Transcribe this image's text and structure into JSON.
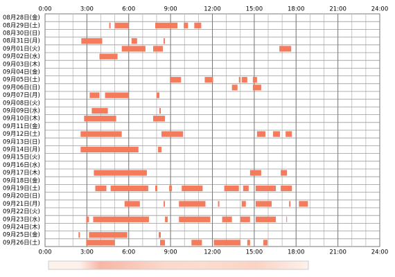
{
  "chart_data": {
    "type": "timeline",
    "xlim": [
      0,
      24
    ],
    "xticks": [
      {
        "value": 0,
        "label": "0:00"
      },
      {
        "value": 3,
        "label": "3:00"
      },
      {
        "value": 6,
        "label": "6:00"
      },
      {
        "value": 9,
        "label": "9:00"
      },
      {
        "value": 12,
        "label": "12:00"
      },
      {
        "value": 15,
        "label": "15:00"
      },
      {
        "value": 18,
        "label": "18:00"
      },
      {
        "value": 21,
        "label": "21:00"
      },
      {
        "value": 24,
        "label": "24:00"
      }
    ],
    "color": "#f47c5c",
    "grid": true,
    "rows": [
      {
        "label": "08月28日(金)",
        "segments": []
      },
      {
        "label": "08月29日(土)",
        "segments": [
          [
            4.6,
            4.7
          ],
          [
            5.0,
            6.0
          ],
          [
            7.9,
            9.5
          ],
          [
            9.95,
            10.25
          ],
          [
            10.7,
            11.2
          ]
        ]
      },
      {
        "label": "08月30日(日)",
        "segments": []
      },
      {
        "label": "08月31日(月)",
        "segments": [
          [
            2.6,
            4.1
          ],
          [
            6.2,
            6.6
          ],
          [
            8.5,
            8.6
          ]
        ]
      },
      {
        "label": "09月01日(火)",
        "segments": [
          [
            5.5,
            7.2
          ],
          [
            7.75,
            8.45
          ],
          [
            16.8,
            17.65
          ]
        ]
      },
      {
        "label": "09月02日(水)",
        "segments": [
          [
            3.9,
            5.2
          ]
        ]
      },
      {
        "label": "09月03日(木)",
        "segments": []
      },
      {
        "label": "09月04日(金)",
        "segments": []
      },
      {
        "label": "09月05日(土)",
        "segments": [
          [
            8.95,
            9.75
          ],
          [
            11.45,
            12.05
          ],
          [
            13.9,
            14.0
          ],
          [
            14.1,
            14.5
          ],
          [
            14.9,
            15.2
          ]
        ]
      },
      {
        "label": "09月06日(日)",
        "segments": [
          [
            13.4,
            13.8
          ],
          [
            14.9,
            15.5
          ]
        ]
      },
      {
        "label": "09月07日(月)",
        "segments": [
          [
            3.2,
            3.9
          ],
          [
            4.3,
            6.0
          ],
          [
            8.0,
            8.2
          ]
        ]
      },
      {
        "label": "09月08日(火)",
        "segments": []
      },
      {
        "label": "09月09日(水)",
        "segments": [
          [
            3.35,
            4.5
          ],
          [
            8.2,
            8.3
          ]
        ]
      },
      {
        "label": "09月10日(木)",
        "segments": [
          [
            2.8,
            5.1
          ],
          [
            7.75,
            8.6
          ]
        ]
      },
      {
        "label": "09月11日(金)",
        "segments": []
      },
      {
        "label": "09月12日(土)",
        "segments": [
          [
            2.55,
            5.5
          ],
          [
            8.35,
            9.9
          ],
          [
            15.2,
            15.8
          ],
          [
            16.35,
            16.85
          ],
          [
            17.25,
            17.7
          ]
        ]
      },
      {
        "label": "09月13日(日)",
        "segments": []
      },
      {
        "label": "09月14日(月)",
        "segments": [
          [
            2.55,
            6.7
          ],
          [
            8.1,
            8.35
          ]
        ]
      },
      {
        "label": "09月15日(火)",
        "segments": []
      },
      {
        "label": "09月16日(水)",
        "segments": []
      },
      {
        "label": "09月17日(木)",
        "segments": [
          [
            3.5,
            7.3
          ],
          [
            14.7,
            15.5
          ],
          [
            16.9,
            17.35
          ]
        ]
      },
      {
        "label": "09月18日(金)",
        "segments": []
      },
      {
        "label": "09月19日(土)",
        "segments": [
          [
            3.6,
            4.4
          ],
          [
            4.7,
            7.4
          ],
          [
            7.9,
            8.05
          ],
          [
            8.9,
            9.1
          ],
          [
            9.8,
            11.3
          ],
          [
            12.85,
            13.9
          ],
          [
            14.2,
            14.6
          ],
          [
            15.1,
            16.55
          ],
          [
            16.9,
            17.7
          ]
        ]
      },
      {
        "label": "09月20日(日)",
        "segments": []
      },
      {
        "label": "09月21日(月)",
        "segments": [
          [
            5.7,
            6.8
          ],
          [
            8.5,
            8.6
          ],
          [
            9.6,
            11.5
          ],
          [
            12.4,
            12.5
          ],
          [
            14.1,
            14.4
          ],
          [
            15.1,
            16.25
          ],
          [
            17.5,
            17.6
          ],
          [
            18.2,
            18.85
          ]
        ]
      },
      {
        "label": "09月22日(火)",
        "segments": []
      },
      {
        "label": "09月23日(水)",
        "segments": [
          [
            2.95,
            3.15
          ],
          [
            3.45,
            7.45
          ],
          [
            8.6,
            8.8
          ],
          [
            9.6,
            11.85
          ],
          [
            12.7,
            13.4
          ],
          [
            14.0,
            14.7
          ],
          [
            15.1,
            16.55
          ],
          [
            17.3,
            17.35
          ]
        ]
      },
      {
        "label": "09月24日(木)",
        "segments": []
      },
      {
        "label": "09月25日(金)",
        "segments": [
          [
            2.4,
            2.5
          ],
          [
            3.15,
            5.9
          ],
          [
            8.15,
            8.3
          ]
        ]
      },
      {
        "label": "09月26日(土)",
        "segments": [
          [
            2.95,
            5.0
          ],
          [
            8.25,
            8.6
          ],
          [
            10.5,
            11.25
          ],
          [
            12.1,
            14.0
          ],
          [
            14.5,
            14.7
          ],
          [
            15.65,
            15.95
          ]
        ]
      }
    ]
  }
}
